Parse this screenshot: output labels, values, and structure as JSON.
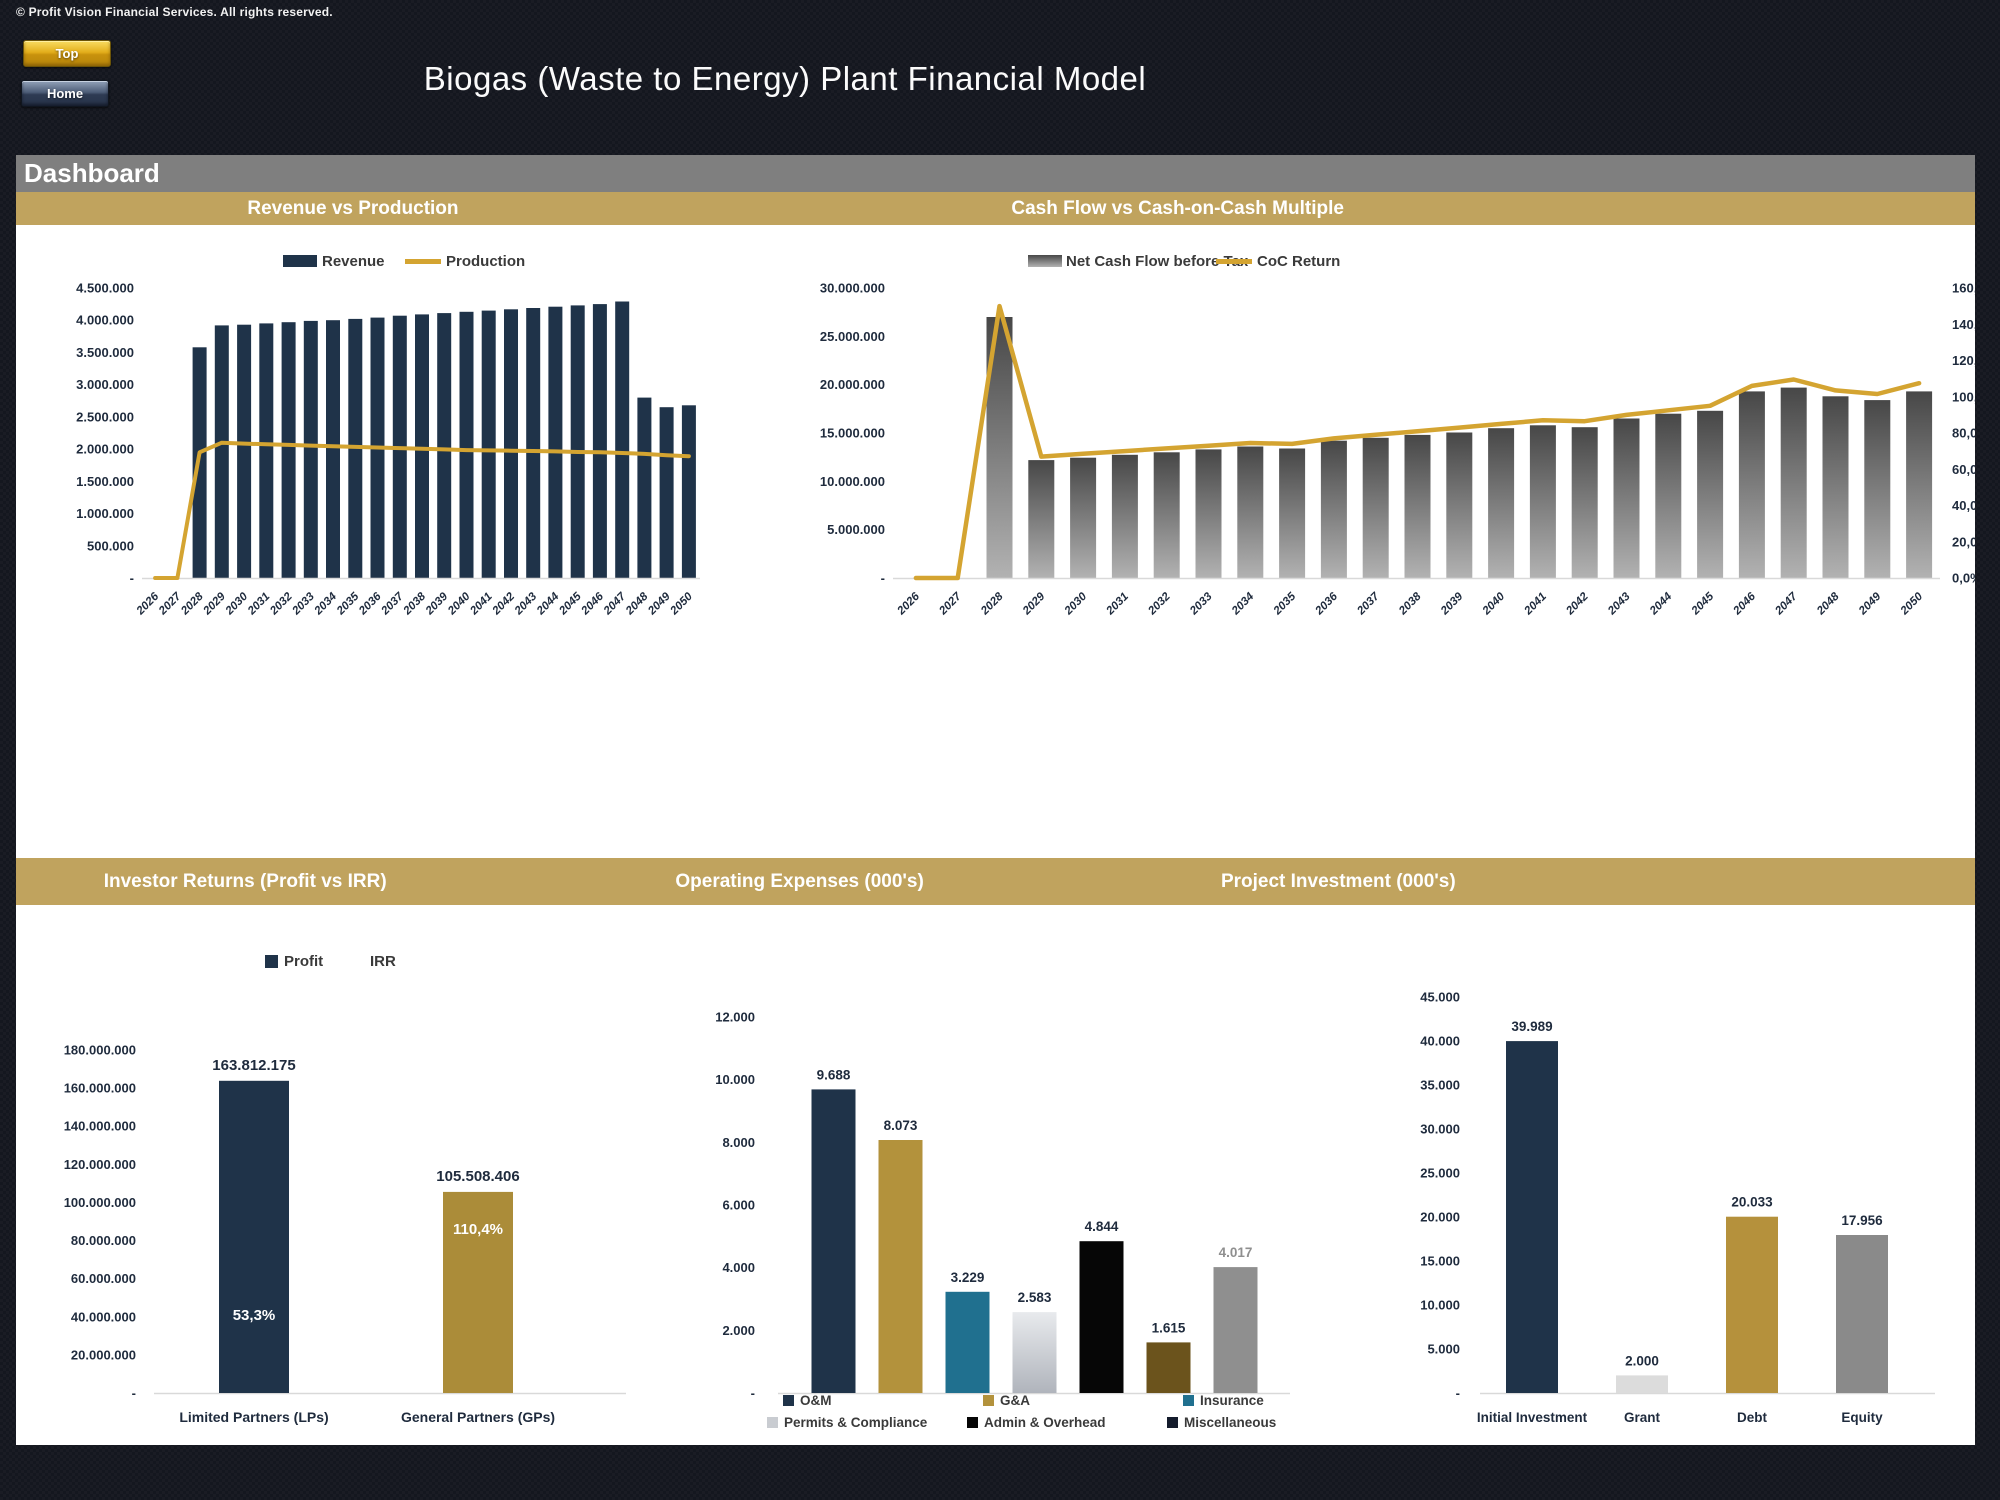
{
  "header": {
    "copyright": "© Profit Vision Financial Services. All rights reserved.",
    "title": "Biogas (Waste to Energy) Plant Financial Model",
    "buttons": [
      {
        "label": "Top"
      },
      {
        "label": "Home"
      }
    ]
  },
  "dashboard": {
    "title": "Dashboard"
  },
  "colors": {
    "background_dark": "#14171f",
    "band_gold": "#c0a35e",
    "band_gray": "#7f7f7f",
    "bar_navy": "#1f3349",
    "line_gold": "#d4a431",
    "bar_gold": "#b3923c",
    "bar_teal": "#20708f",
    "bar_black": "#060606",
    "bar_dark_gold": "#6b531c",
    "bar_gray": "#8f8f8f",
    "axis_text": "#1f2b3d"
  },
  "chart_data": [
    {
      "id": "revenue_production",
      "type": "bar",
      "title": "Revenue vs Production",
      "x": [
        2026,
        2027,
        2028,
        2029,
        2030,
        2031,
        2032,
        2033,
        2034,
        2035,
        2036,
        2037,
        2038,
        2039,
        2040,
        2041,
        2042,
        2043,
        2044,
        2045,
        2046,
        2047,
        2048,
        2049,
        2050
      ],
      "series": [
        {
          "name": "Revenue",
          "type": "bar",
          "color": "#1f3349",
          "values": [
            0,
            0,
            3580000,
            3920000,
            3930000,
            3950000,
            3970000,
            3990000,
            4000000,
            4020000,
            4040000,
            4070000,
            4090000,
            4110000,
            4130000,
            4150000,
            4170000,
            4190000,
            4210000,
            4230000,
            4250000,
            4290000,
            2800000,
            2650000,
            2680000
          ]
        },
        {
          "name": "Production",
          "type": "line",
          "color": "#d4a431",
          "values": [
            0,
            0,
            1950000,
            2100000,
            2085000,
            2075000,
            2065000,
            2055000,
            2045000,
            2035000,
            2025000,
            2015000,
            2005000,
            1995000,
            1985000,
            1980000,
            1975000,
            1970000,
            1965000,
            1955000,
            1950000,
            1940000,
            1925000,
            1905000,
            1890000
          ]
        }
      ],
      "ylim": [
        0,
        4500000
      ],
      "ytick_step": 500000,
      "grid": false,
      "legend_position": "top"
    },
    {
      "id": "cashflow_coc",
      "type": "bar",
      "title": "Cash Flow vs Cash-on-Cash Multiple",
      "x": [
        2026,
        2027,
        2028,
        2029,
        2030,
        2031,
        2032,
        2033,
        2034,
        2035,
        2036,
        2037,
        2038,
        2039,
        2040,
        2041,
        2042,
        2043,
        2044,
        2045,
        2046,
        2047,
        2048,
        2049,
        2050
      ],
      "series": [
        {
          "name": "Net Cash Flow before Tax",
          "type": "bar",
          "axis": "left",
          "color_gradient": [
            "#474747",
            "#b2b2b2"
          ],
          "values": [
            0,
            0,
            27000000,
            12200000,
            12450000,
            12750000,
            13000000,
            13300000,
            13600000,
            13400000,
            14200000,
            14500000,
            14800000,
            15050000,
            15500000,
            15800000,
            15600000,
            16500000,
            17000000,
            17300000,
            19300000,
            19700000,
            18800000,
            18400000,
            19300000
          ]
        },
        {
          "name": "CoC Return",
          "type": "line",
          "axis": "right",
          "color": "#d4a431",
          "values_pct": [
            0,
            0,
            150,
            67,
            68.5,
            70,
            71.5,
            73,
            74.5,
            74,
            77,
            79,
            81,
            83,
            85,
            87,
            86.5,
            90,
            92.5,
            95,
            106,
            109.5,
            103.5,
            101.5,
            107.5
          ]
        }
      ],
      "ylim_left": [
        0,
        30000000
      ],
      "ytick_step_left": 5000000,
      "ylim_right_pct": [
        0,
        160
      ],
      "ytick_step_right_pct": 20,
      "grid": false,
      "legend_position": "top"
    },
    {
      "id": "investor_returns",
      "type": "bar",
      "title": "Investor Returns (Profit vs IRR)",
      "categories": [
        "Limited Partners (LPs)",
        "General Partners (GPs)"
      ],
      "values": [
        163812175,
        105508406
      ],
      "bar_labels": [
        "163.812.175",
        "105.508.406"
      ],
      "irr_labels": [
        "53,3%",
        "110,4%"
      ],
      "bar_colors": [
        "#1f3349",
        "#ab8c39"
      ],
      "legend": [
        {
          "label": "Profit",
          "color": "#1f3349"
        },
        {
          "label": "IRR",
          "color": "none"
        }
      ],
      "ylim": [
        0,
        180000000
      ],
      "ytick_step": 20000000,
      "grid": false
    },
    {
      "id": "operating_expenses",
      "type": "bar",
      "title": "Operating Expenses (000's)",
      "categories": [
        "O&M",
        "G&A",
        "Insurance",
        "Permits & Compliance",
        "Admin & Overhead",
        "Miscellaneous",
        ""
      ],
      "values": [
        9688,
        8073,
        3229,
        2583,
        4844,
        1615,
        4017
      ],
      "bar_labels": [
        "9.688",
        "8.073",
        "3.229",
        "2.583",
        "4.844",
        "1.615",
        "4.017"
      ],
      "bar_colors": [
        "#1f3349",
        "#b3923c",
        "#20708f",
        "silver-gradient",
        "#060606",
        "#6b531c",
        "#8f8f8f"
      ],
      "label_colors": [
        "#1f2b3d",
        "#1f2b3d",
        "#1f2b3d",
        "#1f2b3d",
        "#1f2b3d",
        "#1f2b3d",
        "#8f8f8f"
      ],
      "legend": [
        {
          "label": "O&M",
          "color": "#1f3349"
        },
        {
          "label": "G&A",
          "color": "#b3923c"
        },
        {
          "label": "Insurance",
          "color": "#20708f"
        },
        {
          "label": "Permits & Compliance",
          "color": "#c9ccd1"
        },
        {
          "label": "Admin & Overhead",
          "color": "#060606"
        },
        {
          "label": "Miscellaneous",
          "color": "#141c2c"
        }
      ],
      "ylim": [
        0,
        12000
      ],
      "ytick_step": 2000,
      "grid": false
    },
    {
      "id": "project_investment",
      "type": "bar",
      "title": "Project Investment (000's)",
      "categories": [
        "Initial Investment",
        "Grant",
        "Debt",
        "Equity"
      ],
      "values": [
        39989,
        2000,
        20033,
        17956
      ],
      "bar_labels": [
        "39.989",
        "2.000",
        "20.033",
        "17.956"
      ],
      "bar_colors": [
        "#1f3349",
        "#dcdcdc",
        "#b5913c",
        "#8a8a8a"
      ],
      "ylim": [
        0,
        45000
      ],
      "ytick_step": 5000,
      "grid": false
    }
  ]
}
